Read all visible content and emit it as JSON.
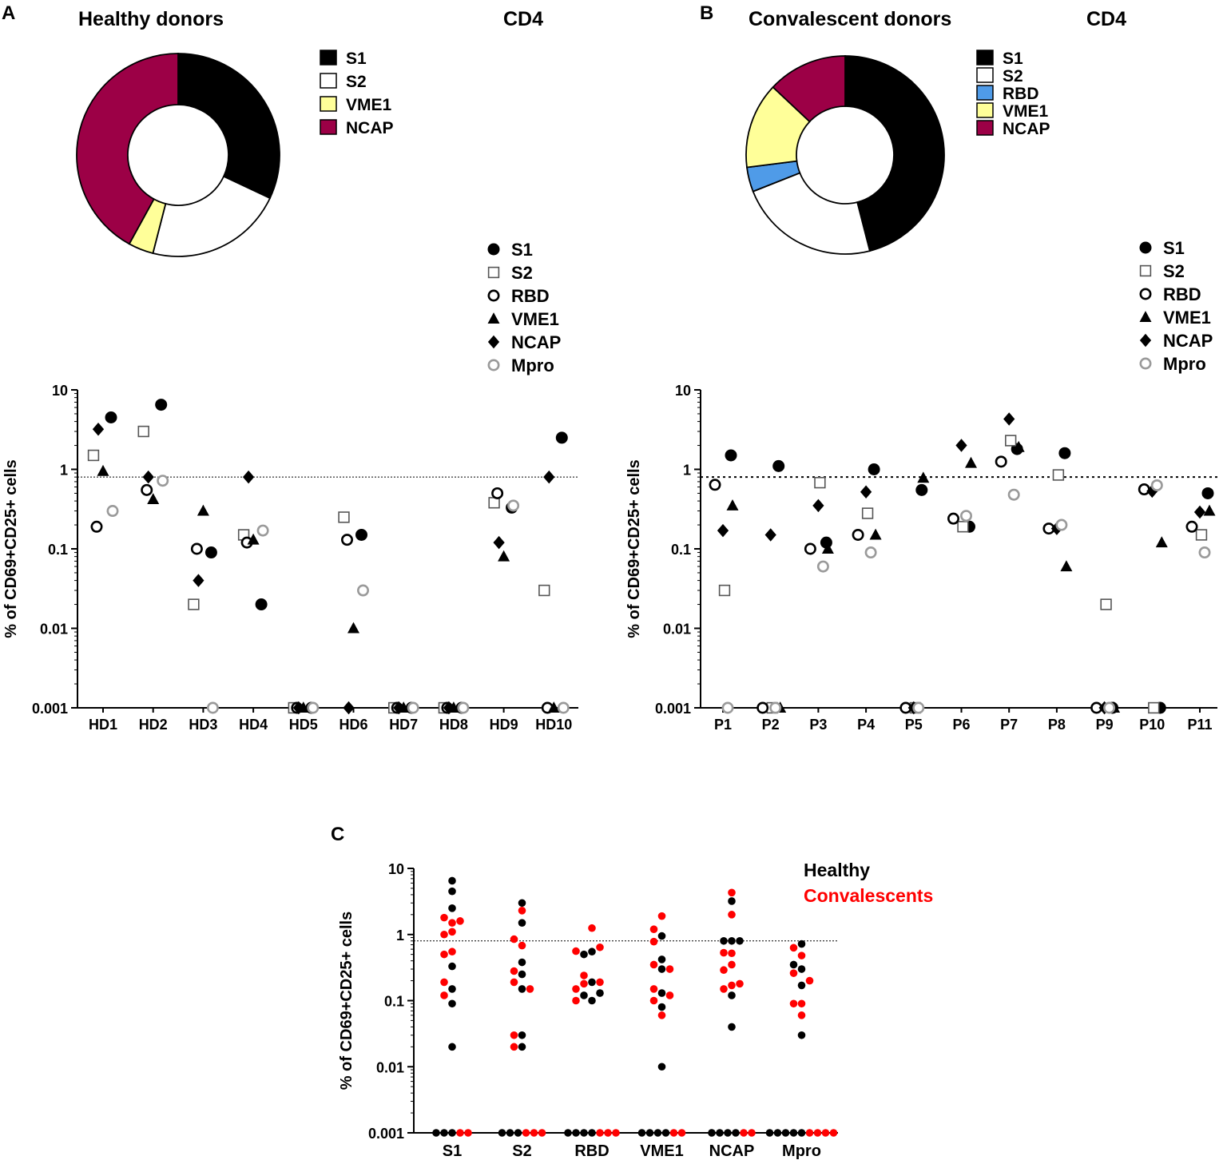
{
  "panels": {
    "A": {
      "letter": "A",
      "title": "Healthy donors",
      "subtitle": "CD4",
      "donut": {
        "legend": [
          "S1",
          "S2",
          "VME1",
          "NCAP"
        ],
        "slices": [
          {
            "label": "S1",
            "value": 32,
            "color": "#000000"
          },
          {
            "label": "S2",
            "value": 22,
            "color": "#ffffff"
          },
          {
            "label": "VME1",
            "value": 4,
            "color": "#ffff99"
          },
          {
            "label": "NCAP",
            "value": 42,
            "color": "#9c0046"
          }
        ]
      },
      "marker_legend": [
        "S1",
        "S2",
        "RBD",
        "VME1",
        "NCAP",
        "Mpro"
      ]
    },
    "B": {
      "letter": "B",
      "title": "Convalescent donors",
      "subtitle": "CD4",
      "donut": {
        "legend": [
          "S1",
          "S2",
          "RBD",
          "VME1",
          "NCAP"
        ],
        "slices": [
          {
            "label": "S1",
            "value": 46,
            "color": "#000000"
          },
          {
            "label": "S2",
            "value": 23,
            "color": "#ffffff"
          },
          {
            "label": "RBD",
            "value": 4,
            "color": "#4f9be8"
          },
          {
            "label": "VME1",
            "value": 14,
            "color": "#ffff99"
          },
          {
            "label": "NCAP",
            "value": 13,
            "color": "#9c0046"
          }
        ]
      },
      "marker_legend": [
        "S1",
        "S2",
        "RBD",
        "VME1",
        "NCAP",
        "Mpro"
      ]
    },
    "C": {
      "letter": "C",
      "legend": [
        {
          "label": "Healthy",
          "color": "#000000"
        },
        {
          "label": "Convalescents",
          "color": "#ff0000"
        }
      ]
    }
  },
  "chart_data": [
    {
      "id": "A",
      "type": "scatter",
      "xlabel": "",
      "ylabel": "% of CD69+CD25+ cells",
      "yscale": "log",
      "ylim": [
        0.001,
        10
      ],
      "yticks": [
        {
          "v": 10,
          "label": "10"
        },
        {
          "v": 1,
          "label": "1"
        },
        {
          "v": 0.1,
          "label": "0.1"
        },
        {
          "v": 0.01,
          "label": "0.01"
        },
        {
          "v": 0.001,
          "label": "0.001"
        }
      ],
      "threshold": 0.8,
      "categories": [
        "HD1",
        "HD2",
        "HD3",
        "HD4",
        "HD5",
        "HD6",
        "HD7",
        "HD8",
        "HD9",
        "HD10"
      ],
      "series": [
        {
          "name": "S1",
          "values": [
            4.5,
            6.5,
            0.09,
            0.02,
            0.001,
            0.15,
            0.001,
            0.001,
            0.33,
            2.5
          ]
        },
        {
          "name": "S2",
          "values": [
            1.5,
            3.0,
            0.02,
            0.15,
            0.001,
            0.25,
            0.001,
            0.001,
            0.38,
            0.03
          ]
        },
        {
          "name": "RBD",
          "values": [
            0.19,
            0.55,
            0.1,
            0.12,
            0.001,
            0.13,
            0.001,
            0.001,
            0.5,
            0.001
          ]
        },
        {
          "name": "VME1",
          "values": [
            0.95,
            0.42,
            0.3,
            0.13,
            0.001,
            0.01,
            0.001,
            0.001,
            0.08,
            0.001
          ]
        },
        {
          "name": "NCAP",
          "values": [
            3.2,
            0.8,
            0.04,
            0.8,
            0.001,
            0.001,
            0.001,
            0.001,
            0.12,
            0.8
          ]
        },
        {
          "name": "Mpro",
          "values": [
            0.3,
            0.72,
            0.001,
            0.17,
            0.001,
            0.03,
            0.001,
            0.001,
            0.35,
            0.001
          ]
        }
      ]
    },
    {
      "id": "B",
      "type": "scatter",
      "xlabel": "",
      "ylabel": "% of CD69+CD25+ cells",
      "yscale": "log",
      "ylim": [
        0.001,
        10
      ],
      "yticks": [
        {
          "v": 10,
          "label": "10"
        },
        {
          "v": 1,
          "label": "1"
        },
        {
          "v": 0.1,
          "label": "0.1"
        },
        {
          "v": 0.01,
          "label": "0.01"
        },
        {
          "v": 0.001,
          "label": "0.001"
        }
      ],
      "threshold": 0.8,
      "categories": [
        "P1",
        "P2",
        "P3",
        "P4",
        "P5",
        "P6",
        "P7",
        "P8",
        "P9",
        "P10",
        "P11"
      ],
      "series": [
        {
          "name": "S1",
          "values": [
            1.5,
            1.1,
            0.12,
            1.0,
            0.55,
            0.19,
            1.8,
            1.6,
            0.001,
            0.001,
            0.5
          ]
        },
        {
          "name": "S2",
          "values": [
            0.03,
            0.001,
            0.68,
            0.28,
            0.001,
            0.19,
            2.3,
            0.85,
            0.02,
            0.001,
            0.15
          ]
        },
        {
          "name": "RBD",
          "values": [
            0.64,
            0.001,
            0.1,
            0.15,
            0.001,
            0.24,
            1.25,
            0.18,
            0.001,
            0.56,
            0.19
          ]
        },
        {
          "name": "VME1",
          "values": [
            0.35,
            0.001,
            0.1,
            0.15,
            0.78,
            1.2,
            1.9,
            0.06,
            0.001,
            0.12,
            0.3
          ]
        },
        {
          "name": "NCAP",
          "values": [
            0.17,
            0.15,
            0.35,
            0.52,
            0.001,
            2.0,
            4.3,
            0.18,
            0.001,
            0.53,
            0.29
          ]
        },
        {
          "name": "Mpro",
          "values": [
            0.001,
            0.001,
            0.06,
            0.09,
            0.001,
            0.26,
            0.48,
            0.2,
            0.001,
            0.63,
            0.09
          ]
        }
      ]
    },
    {
      "id": "C",
      "type": "scatter",
      "xlabel": "",
      "ylabel": "% of CD69+CD25+ cells",
      "yscale": "log",
      "ylim": [
        0.001,
        10
      ],
      "yticks": [
        {
          "v": 10,
          "label": "10"
        },
        {
          "v": 1,
          "label": "1"
        },
        {
          "v": 0.1,
          "label": "0.1"
        },
        {
          "v": 0.01,
          "label": "0.01"
        },
        {
          "v": 0.001,
          "label": "0.001"
        }
      ],
      "threshold": 0.8,
      "categories": [
        "S1",
        "S2",
        "RBD",
        "VME1",
        "NCAP",
        "Mpro"
      ],
      "series": [
        {
          "name": "Healthy",
          "color": "#000000",
          "values": [
            [
              4.5,
              6.5,
              0.09,
              0.02,
              0.001,
              0.15,
              0.001,
              0.001,
              0.33,
              2.5
            ],
            [
              1.5,
              3.0,
              0.02,
              0.15,
              0.001,
              0.25,
              0.001,
              0.001,
              0.38,
              0.03
            ],
            [
              0.19,
              0.55,
              0.1,
              0.12,
              0.001,
              0.13,
              0.001,
              0.001,
              0.5,
              0.001
            ],
            [
              0.95,
              0.42,
              0.3,
              0.13,
              0.001,
              0.01,
              0.001,
              0.001,
              0.08,
              0.001
            ],
            [
              3.2,
              0.8,
              0.04,
              0.8,
              0.001,
              0.001,
              0.001,
              0.001,
              0.12,
              0.8
            ],
            [
              0.3,
              0.72,
              0.001,
              0.17,
              0.001,
              0.03,
              0.001,
              0.001,
              0.35,
              0.001
            ]
          ]
        },
        {
          "name": "Convalescents",
          "color": "#ff0000",
          "values": [
            [
              1.5,
              1.1,
              0.12,
              1.0,
              0.55,
              0.19,
              1.8,
              1.6,
              0.001,
              0.001,
              0.5
            ],
            [
              0.03,
              0.001,
              0.68,
              0.28,
              0.001,
              0.19,
              2.3,
              0.85,
              0.02,
              0.001,
              0.15
            ],
            [
              0.64,
              0.001,
              0.1,
              0.15,
              0.001,
              0.24,
              1.25,
              0.18,
              0.001,
              0.56,
              0.19
            ],
            [
              0.35,
              0.001,
              0.1,
              0.15,
              0.78,
              1.2,
              1.9,
              0.06,
              0.001,
              0.12,
              0.3
            ],
            [
              0.17,
              0.15,
              0.35,
              0.52,
              0.001,
              2.0,
              4.3,
              0.18,
              0.001,
              0.53,
              0.29
            ],
            [
              0.001,
              0.001,
              0.06,
              0.09,
              0.001,
              0.26,
              0.48,
              0.2,
              0.001,
              0.63,
              0.09
            ]
          ]
        }
      ]
    }
  ]
}
